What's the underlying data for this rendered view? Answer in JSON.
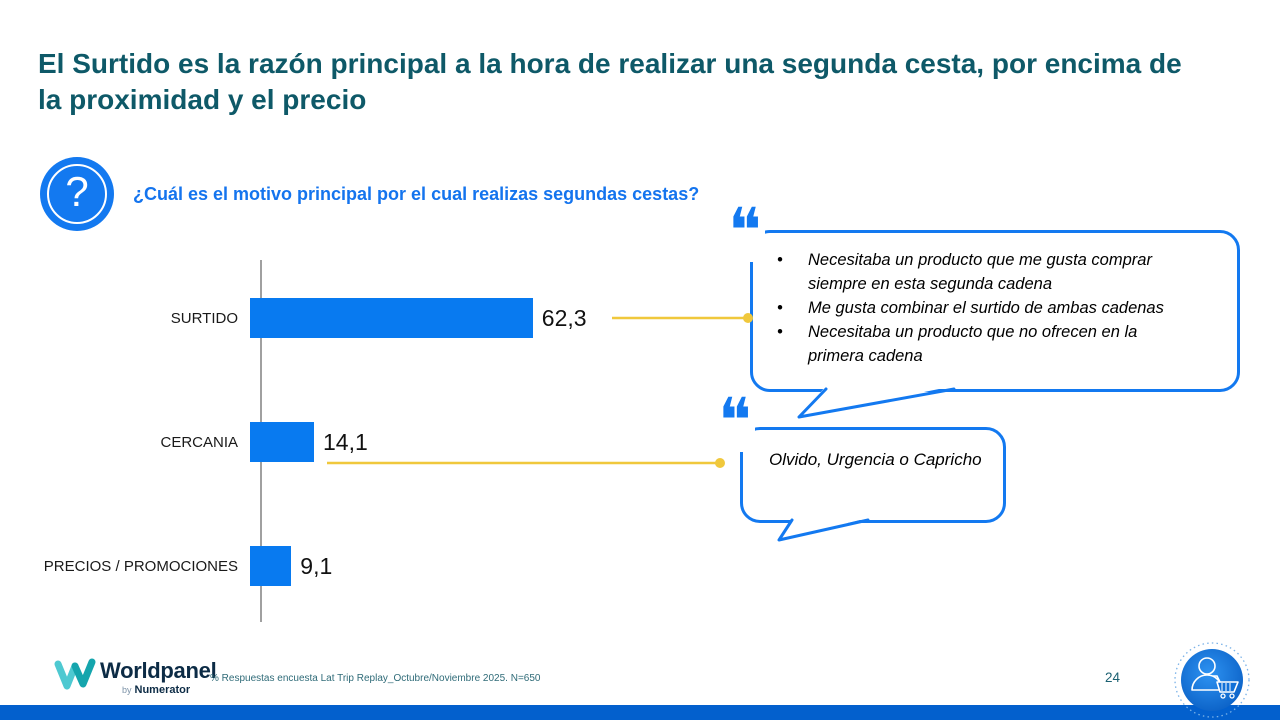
{
  "slide": {
    "title": "El Surtido es la razón principal a la hora de realizar una segunda cesta, por encima de la proximidad y el precio",
    "question_mark": "?",
    "question_label": "¿Cuál es el motivo principal por el cual realizas segundas cestas?",
    "footnote": "% Respuestas encuesta Lat Trip Replay_Octubre/Noviembre 2025. N=650",
    "page_number": "24"
  },
  "chart_data": {
    "type": "bar",
    "orientation": "horizontal",
    "categories": [
      "SURTIDO",
      "CERCANIA",
      "PRECIOS / PROMOCIONES"
    ],
    "values": [
      62.3,
      14.1,
      9.1
    ],
    "value_labels": [
      "62,3",
      "14,1",
      "9,1"
    ],
    "xlim": [
      0,
      100
    ],
    "grid": false,
    "legend": "none",
    "bar_color": "#087af0"
  },
  "callouts": {
    "surtido": {
      "quote_glyph": "❝",
      "bullets": [
        "Necesitaba un producto que me gusta comprar siempre en esta segunda cadena",
        "Me gusta combinar el surtido de ambas cadenas",
        "Necesitaba un producto que no ofrecen en la primera cadena"
      ]
    },
    "cercania": {
      "quote_glyph": "❝",
      "text": "Olvido, Urgencia o Capricho"
    }
  },
  "footer": {
    "logo_brand": "Worldpanel",
    "logo_by": "by",
    "logo_sub": "Numerator"
  },
  "icons": {
    "question_icon": "question-mark-in-circle",
    "cart_icon": "shopper-with-cart-in-circle"
  },
  "colors": {
    "title": "#0e5968",
    "question": "#1474ee",
    "bar": "#087af0",
    "bubble_border": "#1379f0",
    "connector": "#f0c83c",
    "bottom_bar": "#0360cd",
    "footnote": "#2f6b78"
  }
}
